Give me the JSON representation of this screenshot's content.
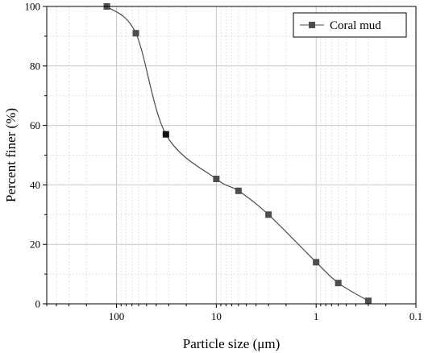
{
  "chart_data": {
    "type": "line",
    "x_scale": "log",
    "x_reversed": true,
    "xlabel": "Particle size (μm)",
    "ylabel": "Percent finer (%)",
    "xlim": [
      500,
      0.1
    ],
    "ylim": [
      0,
      100
    ],
    "grid": true,
    "legend_position": "top-right",
    "x_ticks": [
      {
        "value": 100,
        "label": "100"
      },
      {
        "value": 10,
        "label": "10"
      },
      {
        "value": 1,
        "label": "1"
      },
      {
        "value": 0.1,
        "label": "0.1"
      }
    ],
    "y_ticks": [
      {
        "value": 0,
        "label": "0"
      },
      {
        "value": 20,
        "label": "20"
      },
      {
        "value": 40,
        "label": "40"
      },
      {
        "value": 60,
        "label": "60"
      },
      {
        "value": 80,
        "label": "80"
      },
      {
        "value": 100,
        "label": "100"
      }
    ],
    "series": [
      {
        "name": "Coral mud",
        "color": "#4d4d4d",
        "marker": "square",
        "x": [
          125,
          64,
          32,
          10,
          6,
          3,
          1,
          0.6,
          0.3
        ],
        "y": [
          100,
          91,
          57,
          42,
          38,
          30,
          14,
          7,
          1
        ]
      }
    ]
  }
}
